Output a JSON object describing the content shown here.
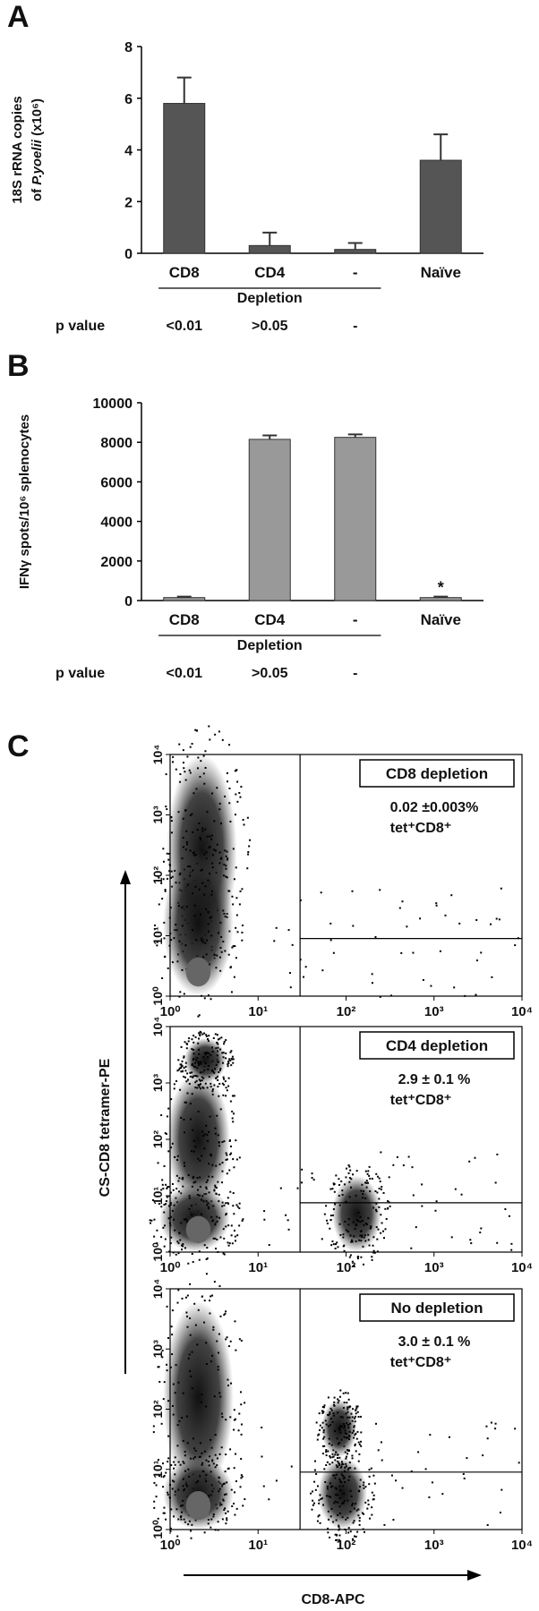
{
  "chart_data": [
    {
      "type": "bar",
      "panel": "A",
      "y_label_lines": [
        "18S rRNA copies",
        "of ",
        "P.yoelii",
        " (x10⁶)"
      ],
      "categories": [
        "CD8",
        "CD4",
        "-",
        "Naïve"
      ],
      "values": [
        5.8,
        0.3,
        0.15,
        3.6
      ],
      "errors": [
        1.0,
        0.5,
        0.25,
        1.0
      ],
      "color": "#555555",
      "ylim": [
        0,
        8
      ],
      "yticks": [
        0,
        2,
        4,
        6,
        8
      ],
      "group_label": "Depletion",
      "p_value_label": "p value",
      "p_values": [
        "<0.01",
        ">0.05",
        "-",
        null
      ]
    },
    {
      "type": "bar",
      "panel": "B",
      "y_label_lines": [
        "IFNγ spots/10⁶ splenocytes"
      ],
      "categories": [
        "CD8",
        "CD4",
        "-",
        "Naïve"
      ],
      "values": [
        150,
        8150,
        8250,
        150
      ],
      "errors": [
        50,
        200,
        150,
        50
      ],
      "value_annotations": [
        null,
        null,
        null,
        "*"
      ],
      "color": "#999999",
      "ylim": [
        0,
        10000
      ],
      "yticks": [
        0,
        2000,
        4000,
        6000,
        8000,
        10000
      ],
      "group_label": "Depletion",
      "p_value_label": "p value",
      "p_values": [
        "<0.01",
        ">0.05",
        "-",
        null
      ]
    },
    {
      "type": "flow",
      "box_label": "CD8 depletion",
      "percent": "0.02 ±0.003%",
      "population": "tet⁺CD8⁺",
      "log": true,
      "xlim": [
        1,
        10000
      ],
      "ylim": [
        1,
        10000
      ],
      "gate_x": 30,
      "gate_y": 9,
      "xticks": [
        {
          "value": 1,
          "label": "10⁰"
        },
        {
          "value": 10,
          "label": "10¹"
        },
        {
          "value": 100,
          "label": "10²"
        },
        {
          "value": 1000,
          "label": "10³"
        },
        {
          "value": 10000,
          "label": "10⁴"
        }
      ],
      "yticks": [
        {
          "value": 1,
          "label": "10⁰"
        },
        {
          "value": 10,
          "label": "10¹"
        },
        {
          "value": 100,
          "label": "10²"
        },
        {
          "value": 1000,
          "label": "10³"
        },
        {
          "value": 10000,
          "label": "10⁴"
        }
      ]
    },
    {
      "type": "flow",
      "box_label": "CD4 depletion",
      "percent": "2.9 ± 0.1 %",
      "population": "tet⁺CD8⁺",
      "log": true,
      "xlim": [
        1,
        10000
      ],
      "ylim": [
        1,
        10000
      ],
      "gate_x": 30,
      "gate_y": 7.5,
      "xticks": [
        {
          "value": 1,
          "label": "10⁰"
        },
        {
          "value": 10,
          "label": "10¹"
        },
        {
          "value": 100,
          "label": "10²"
        },
        {
          "value": 1000,
          "label": "10³"
        },
        {
          "value": 10000,
          "label": "10⁴"
        }
      ],
      "yticks": [
        {
          "value": 1,
          "label": "10⁰"
        },
        {
          "value": 10,
          "label": "10¹"
        },
        {
          "value": 100,
          "label": "10²"
        },
        {
          "value": 1000,
          "label": "10³"
        },
        {
          "value": 10000,
          "label": "10⁴"
        }
      ]
    },
    {
      "type": "flow",
      "box_label": "No depletion",
      "percent": "3.0 ± 0.1 %",
      "population": "tet⁺CD8⁺",
      "log": true,
      "xlim": [
        1,
        10000
      ],
      "ylim": [
        1,
        10000
      ],
      "gate_x": 30,
      "gate_y": 9,
      "xticks": [
        {
          "value": 1,
          "label": "10⁰"
        },
        {
          "value": 10,
          "label": "10¹"
        },
        {
          "value": 100,
          "label": "10²"
        },
        {
          "value": 1000,
          "label": "10³"
        },
        {
          "value": 10000,
          "label": "10⁴"
        }
      ],
      "yticks": [
        {
          "value": 1,
          "label": "10⁰"
        },
        {
          "value": 10,
          "label": "10¹"
        },
        {
          "value": 100,
          "label": "10²"
        },
        {
          "value": 1000,
          "label": "10³"
        },
        {
          "value": 10000,
          "label": "10⁴"
        }
      ]
    }
  ],
  "panel_c": {
    "label": "C",
    "y_label": "CS-CD8 tetramer-PE",
    "x_label": "CD8-APC"
  }
}
